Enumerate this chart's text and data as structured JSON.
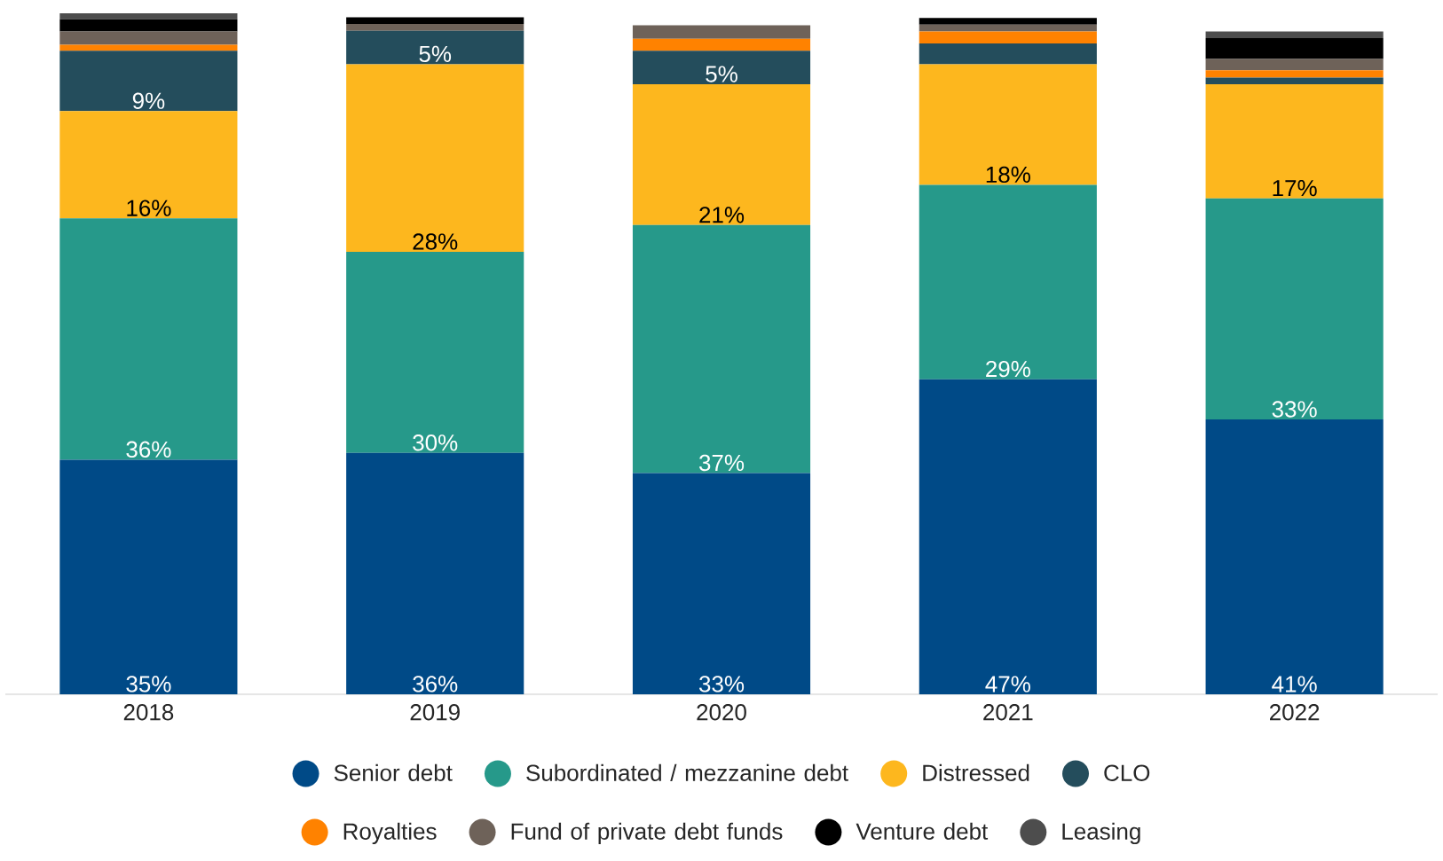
{
  "chart_data": {
    "type": "bar",
    "stacked": true,
    "categories": [
      "2018",
      "2019",
      "2020",
      "2021",
      "2022"
    ],
    "legend": "bottom",
    "marker": "circle",
    "series": [
      {
        "name": "Senior debt",
        "color": "#004a87",
        "values": [
          35,
          36,
          33,
          47,
          41
        ],
        "value_labels": [
          "35%",
          "36%",
          "33%",
          "47%",
          "41%"
        ]
      },
      {
        "name": "Subordinated / mezzanine debt",
        "color": "#26998a",
        "values": [
          36,
          30,
          37,
          29,
          33
        ],
        "value_labels": [
          "36%",
          "30%",
          "37%",
          "29%",
          "33%"
        ]
      },
      {
        "name": "Distressed",
        "color": "#fdb71e",
        "values": [
          16,
          28,
          21,
          18,
          17
        ],
        "value_labels": [
          "16%",
          "28%",
          "21%",
          "18%",
          "17%"
        ]
      },
      {
        "name": "CLO",
        "color": "#244d5c",
        "values": [
          9,
          5,
          5,
          3.1,
          1.0
        ],
        "value_labels": [
          "9%",
          "5%",
          "5%",
          null,
          null
        ]
      },
      {
        "name": "Royalties",
        "color": "#ff8200",
        "values": [
          0.9,
          0,
          1.8,
          1.8,
          1.1
        ]
      },
      {
        "name": "Fund of private debt funds",
        "color": "#6e6259",
        "values": [
          2.0,
          1.0,
          2.0,
          1.0,
          1.7
        ]
      },
      {
        "name": "Venture debt",
        "color": "#000000",
        "values": [
          1.8,
          1.0,
          0,
          1.0,
          3.1
        ]
      },
      {
        "name": "Leasing",
        "color": "#4d4d4d",
        "values": [
          0.9,
          0,
          0,
          0,
          1.0
        ]
      }
    ]
  }
}
